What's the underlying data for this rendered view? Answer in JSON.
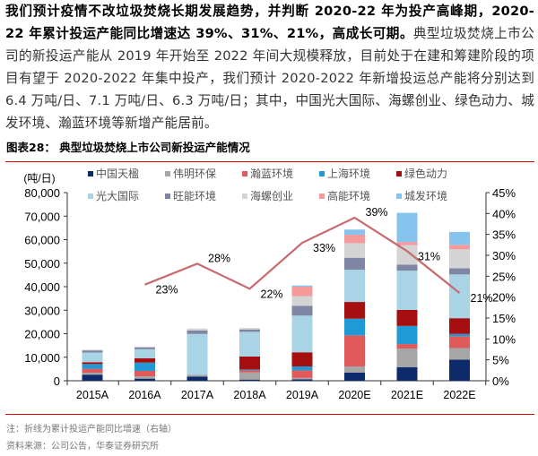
{
  "paragraph": {
    "bold": "我们预计疫情不改垃圾焚烧长期发展趋势，并判断 2020-22 年为投产高峰期，2020-22 年累计投运产能同比增速达 39%、31%、21%，高成长可期。",
    "regular": "典型垃圾焚烧上市公司的新投运产能从 2019 年开始至 2022 年间大规模释放，目前处于在建和筹建阶段的项目有望于 2020-2022 年集中投产，我们预计 2020-2022 年新增投运总产能将分别达到 6.4 万吨/日、7.1 万吨/日、6.3 万吨/日；其中，中国光大国际、海螺创业、绿色动力、城发环境、瀚蓝环境等新增产能居前。"
  },
  "figure": {
    "title": "图表28：  典型垃圾焚烧上市公司新投运产能情况",
    "note": "注：折线为累计投运产能同比增速（右轴）",
    "source": "资料来源：公司公告，华泰证券研究所"
  },
  "chart_data": {
    "type": "bar",
    "stacked": true,
    "categories": [
      "2015A",
      "2016A",
      "2017A",
      "2018A",
      "2019A",
      "2020E",
      "2021E",
      "2022E"
    ],
    "ylabel": "(吨/日)",
    "ylim": [
      0,
      80000
    ],
    "y_ticks": [
      "0",
      "10,000",
      "20,000",
      "30,000",
      "40,000",
      "50,000",
      "60,000",
      "70,000",
      "80,000"
    ],
    "y2lim": [
      0,
      45
    ],
    "y2_ticks": [
      "0%",
      "5%",
      "10%",
      "15%",
      "20%",
      "25%",
      "30%",
      "35%",
      "40%",
      "45%"
    ],
    "grid": false,
    "legend_placement": "top",
    "series": [
      {
        "name": "中国天楹",
        "color": "#0d2a6b",
        "values": [
          2600,
          900,
          1800,
          500,
          600,
          3500,
          5800,
          9000
        ]
      },
      {
        "name": "伟明环保",
        "color": "#a6a6a6",
        "values": [
          800,
          1000,
          800,
          3100,
          600,
          2600,
          7900,
          4900
        ]
      },
      {
        "name": "瀚蓝环境",
        "color": "#e05a5a",
        "values": [
          1700,
          2300,
          0,
          800,
          3200,
          13200,
          1900,
          5000
        ]
      },
      {
        "name": "上海环境",
        "color": "#1f9ad6",
        "values": [
          2000,
          3500,
          0,
          400,
          1700,
          7100,
          7700,
          1000
        ]
      },
      {
        "name": "绿色动力",
        "color": "#a50f0f",
        "values": [
          800,
          1900,
          0,
          5500,
          6000,
          7100,
          6800,
          6700
        ]
      },
      {
        "name": "光大国际",
        "color": "#a9d4e6",
        "values": [
          4100,
          3800,
          17300,
          10500,
          15600,
          13700,
          16700,
          18600
        ]
      },
      {
        "name": "旺能环境",
        "color": "#7f86a3",
        "values": [
          900,
          800,
          1500,
          1000,
          4200,
          5100,
          2600,
          2600
        ]
      },
      {
        "name": "海螺创业",
        "color": "#d4d4d4",
        "values": [
          300,
          300,
          800,
          600,
          4100,
          6200,
          8300,
          8100
        ]
      },
      {
        "name": "高能环境",
        "color": "#f59a9a",
        "values": [
          0,
          0,
          0,
          0,
          4000,
          3600,
          1300,
          1900
        ]
      },
      {
        "name": "城发环境",
        "color": "#86c3ee",
        "values": [
          0,
          0,
          0,
          0,
          500,
          2200,
          12400,
          5500
        ]
      }
    ],
    "line": {
      "axis": "right",
      "color": "#c86a6e",
      "categories": [
        "2016A",
        "2017A",
        "2018A",
        "2019A",
        "2020E",
        "2021E",
        "2022E"
      ],
      "values": [
        23,
        28,
        22,
        33,
        39,
        31,
        21
      ],
      "labels": [
        "23%",
        "28%",
        "22%",
        "33%",
        "39%",
        "31%",
        "21%"
      ]
    }
  }
}
